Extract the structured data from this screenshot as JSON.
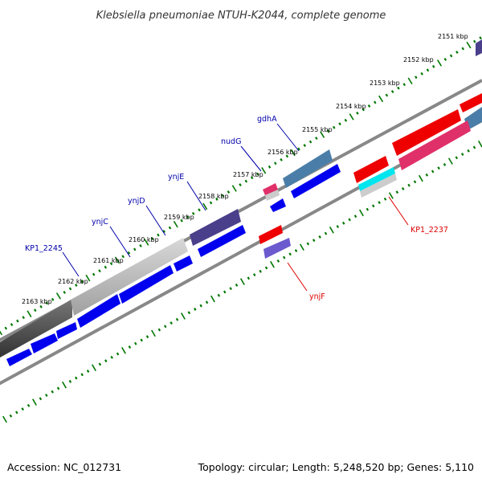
{
  "title": "Klebsiella pneumoniae NTUH-K2044, complete genome",
  "footer": {
    "accession": "Accession: NC_012731",
    "stats": "Topology: circular; Length: 5,248,520 bp; Genes: 5,110"
  },
  "scale": {
    "unit": "kbp",
    "ticks": [
      "2151 kbp",
      "2152 kbp",
      "2153 kbp",
      "2154 kbp",
      "2155 kbp",
      "2156 kbp",
      "2157 kbp",
      "2158 kbp",
      "2159 kbp",
      "2160 kbp",
      "2161 kbp",
      "2162 kbp",
      "2163 kbp"
    ]
  },
  "gene_labels_outer": [
    "gdhA",
    "nudG",
    "ynjE",
    "ynjD",
    "ynjC",
    "KP1_2245"
  ],
  "gene_labels_inner": [
    "KP1_2237",
    "ynjF"
  ],
  "colors": {
    "label_outer": "#0000aa",
    "label_inner": "#dd0000",
    "ticks": "#007700",
    "backbone": "#808080",
    "cds_forward": "#0000ee",
    "cds_reverse": "#ee0000"
  }
}
